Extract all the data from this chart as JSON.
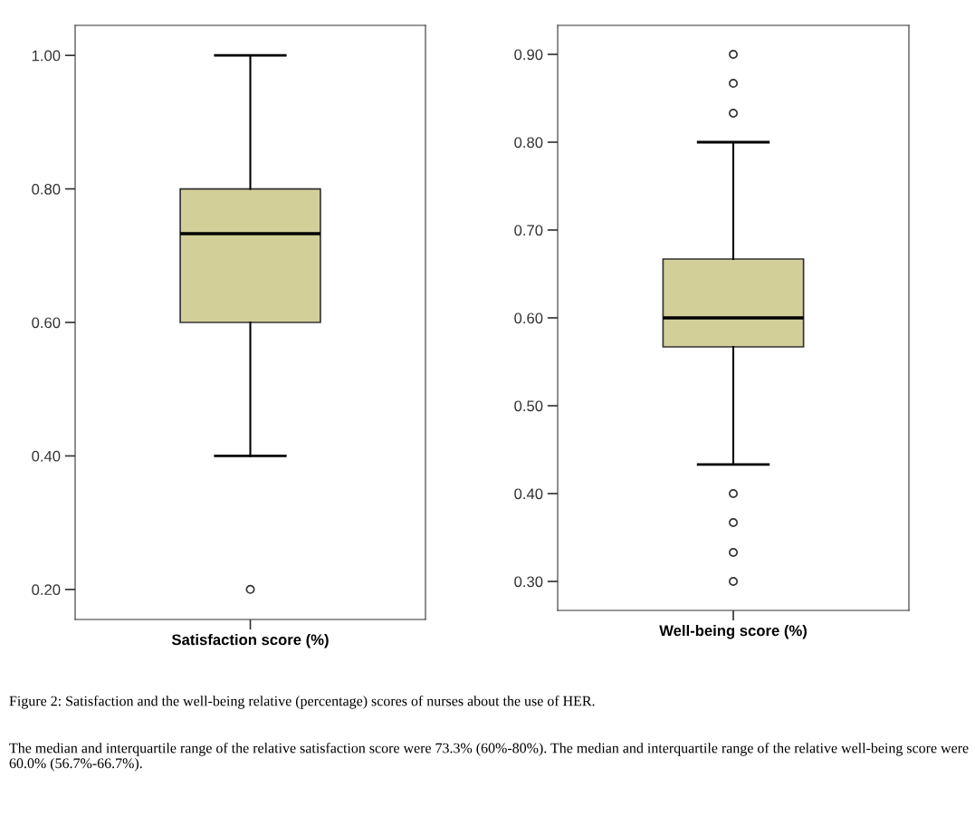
{
  "chart_data": [
    {
      "type": "box",
      "categories": [
        "Satisfaction score (%)"
      ],
      "series": [
        {
          "color": "#d3cf99",
          "boxes": [
            {
              "low": 0.4,
              "q1": 0.6,
              "median": 0.733,
              "q3": 0.8,
              "high": 1.0,
              "outliers": [
                0.2
              ]
            }
          ]
        }
      ],
      "ylim": [
        0.155,
        1.045
      ],
      "yticks": [
        {
          "value": 0.2,
          "label": "0.20"
        },
        {
          "value": 0.4,
          "label": "0.40"
        },
        {
          "value": 0.6,
          "label": "0.60"
        },
        {
          "value": 0.8,
          "label": "0.80"
        },
        {
          "value": 1.0,
          "label": "1.00"
        }
      ]
    },
    {
      "type": "box",
      "categories": [
        "Well-being score (%)"
      ],
      "series": [
        {
          "color": "#d3cf99",
          "boxes": [
            {
              "low": 0.433,
              "q1": 0.567,
              "median": 0.6,
              "q3": 0.667,
              "high": 0.8,
              "outliers": [
                0.9,
                0.867,
                0.833,
                0.4,
                0.367,
                0.333,
                0.3
              ]
            }
          ]
        }
      ],
      "ylim": [
        0.267,
        0.933
      ],
      "yticks": [
        {
          "value": 0.3,
          "label": "0.30"
        },
        {
          "value": 0.4,
          "label": "0.40"
        },
        {
          "value": 0.5,
          "label": "0.50"
        },
        {
          "value": 0.6,
          "label": "0.60"
        },
        {
          "value": 0.7,
          "label": "0.70"
        },
        {
          "value": 0.8,
          "label": "0.80"
        },
        {
          "value": 0.9,
          "label": "0.90"
        }
      ],
      "annotations": [
        "Figure 2: Satisfaction and the well-being relative (percentage) scores of nurses about the use of HER.",
        "The median and interquartile range of the relative satisfaction score were 73.3% (60%-80%). The median and interquartile range of the relative well-being score were 60.0% (56.7%-66.7%)."
      ]
    }
  ]
}
